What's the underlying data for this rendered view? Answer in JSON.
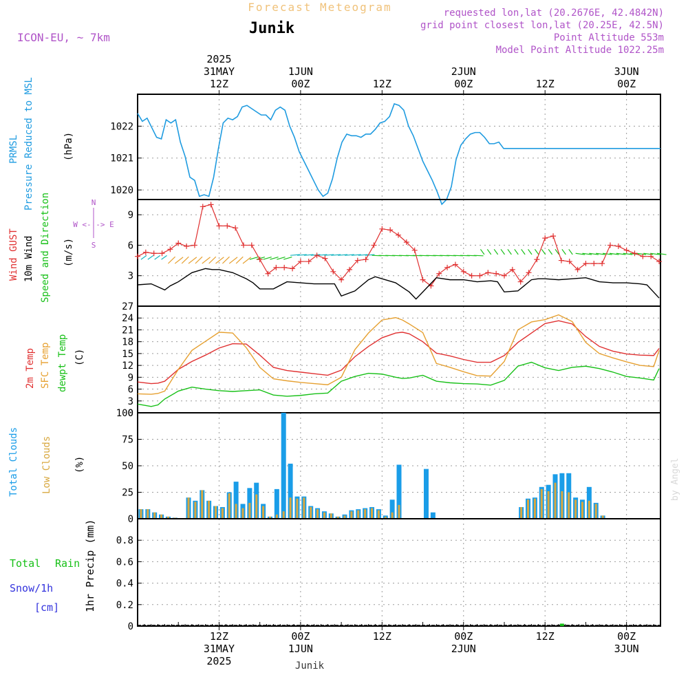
{
  "header": {
    "title": "Forecast Meteogram",
    "location": "Junik",
    "model": "ICON-EU, ~ 7km",
    "requested": "requested lon,lat (20.2676E, 42.4842N)",
    "gridpoint": "grid point closest lon,lat (20.25E, 42.5N)",
    "point_altitude": "Point Altitude 553m",
    "model_altitude": "Model Point Altitude 1022.25m",
    "footer": "Junik",
    "credit": "by Angel"
  },
  "colors": {
    "pressure": "#1e9be0",
    "gust": "#e03030",
    "wind": "#000000",
    "arrows": "#17c017",
    "t2m": "#e03030",
    "sfc": "#e6a030",
    "dewpt": "#17c017",
    "total_clouds": "#1a9de8",
    "low_clouds": "#d8a840",
    "rain": "#17c017",
    "snow": "#3333dd",
    "labels_purple": "#b054c8",
    "title": "#f0c27a"
  },
  "time_axis": {
    "top": [
      {
        "h": 12,
        "lines": [
          "2025",
          "31MAY",
          "12Z"
        ]
      },
      {
        "h": 24,
        "lines": [
          "1JUN",
          "00Z"
        ]
      },
      {
        "h": 36,
        "lines": [
          "12Z"
        ]
      },
      {
        "h": 48,
        "lines": [
          "2JUN",
          "00Z"
        ]
      },
      {
        "h": 60,
        "lines": [
          "12Z"
        ]
      },
      {
        "h": 72,
        "lines": [
          "3JUN",
          "00Z"
        ]
      }
    ],
    "bottom": [
      {
        "h": 12,
        "lines": [
          "12Z",
          "31MAY",
          "2025"
        ]
      },
      {
        "h": 24,
        "lines": [
          "00Z",
          "1JUN"
        ]
      },
      {
        "h": 36,
        "lines": [
          "12Z"
        ]
      },
      {
        "h": 48,
        "lines": [
          "00Z",
          "2JUN"
        ]
      },
      {
        "h": 60,
        "lines": [
          "12Z"
        ]
      },
      {
        "h": 72,
        "lines": [
          "00Z",
          "3JUN"
        ]
      }
    ]
  },
  "chart_data": [
    {
      "type": "line",
      "panel": "pressure",
      "ylabel": "(hPa)",
      "side_labels": [
        "PRMSL",
        "Pressure Reduced to MSL"
      ],
      "ylim": [
        1019.7,
        1023.0
      ],
      "yticks": [
        1020,
        1021,
        1022
      ],
      "grid": true,
      "x_hours": [
        0,
        0.7,
        1.4,
        2.1,
        2.8,
        3.5,
        4.2,
        4.9,
        5.6,
        6.3,
        7.0,
        7.7,
        8.4,
        9.1,
        9.8,
        10.5,
        11.2,
        11.9,
        12.6,
        13.3,
        14.0,
        14.7,
        15.4,
        16.1,
        16.8,
        17.5,
        18.2,
        18.9,
        19.6,
        20.3,
        21.0,
        21.7,
        22.4,
        23.1,
        23.8,
        24.5,
        25.2,
        25.9,
        26.6,
        27.3,
        28.0,
        28.7,
        29.4,
        30.1,
        30.8,
        31.5,
        32.2,
        32.9,
        33.6,
        34.3,
        35.0,
        35.7,
        36.4,
        37.1,
        37.8,
        38.5,
        39.2,
        39.9,
        40.6,
        41.3,
        42.0,
        42.7,
        43.4,
        44.1,
        44.8,
        45.5,
        46.2,
        46.9,
        47.6,
        48.3,
        49.0,
        49.7,
        50.4,
        51.1,
        51.8,
        52.5,
        53.2,
        53.9,
        54.6,
        55.3,
        56.0,
        56.7,
        57.4,
        58.1,
        58.8,
        59.5,
        60.2,
        60.9,
        61.6,
        62.3,
        63.0,
        63.7,
        64.4,
        65.1,
        65.8,
        66.5,
        67.2,
        67.9,
        68.6,
        69.3,
        70.0,
        70.7,
        71.4,
        72.1,
        72.8,
        73.5,
        74.2,
        74.9,
        75.6,
        76.3,
        77.0
      ],
      "values": [
        1022.4,
        1022.15,
        1022.25,
        1021.95,
        1021.65,
        1021.6,
        1022.2,
        1022.1,
        1022.2,
        1021.5,
        1021.05,
        1020.4,
        1020.3,
        1019.8,
        1019.85,
        1019.8,
        1020.4,
        1021.3,
        1022.1,
        1022.25,
        1022.2,
        1022.3,
        1022.6,
        1022.65,
        1022.55,
        1022.45,
        1022.35,
        1022.35,
        1022.2,
        1022.5,
        1022.6,
        1022.5,
        1022.0,
        1021.65,
        1021.2,
        1020.9,
        1020.6,
        1020.3,
        1020.0,
        1019.8,
        1019.9,
        1020.35,
        1021.0,
        1021.5,
        1021.75,
        1021.7,
        1021.7,
        1021.65,
        1021.75,
        1021.75,
        1021.9,
        1022.1,
        1022.15,
        1022.3,
        1022.7,
        1022.65,
        1022.5,
        1022.0,
        1021.7,
        1021.3,
        1020.9,
        1020.6,
        1020.3,
        1019.95,
        1019.55,
        1019.7,
        1020.1,
        1020.95,
        1021.4,
        1021.6,
        1021.75,
        1021.8,
        1021.8,
        1021.65,
        1021.45,
        1021.45,
        1021.5,
        1021.3,
        1021.3,
        1021.3,
        1021.3,
        1021.3,
        1021.3,
        1021.3,
        1021.3,
        1021.3,
        1021.3,
        1021.3,
        1021.3,
        1021.3,
        1021.3,
        1021.3,
        1021.3,
        1021.3,
        1021.3,
        1021.3,
        1021.3,
        1021.3,
        1021.3,
        1021.3,
        1021.3,
        1021.3,
        1021.3,
        1021.3,
        1021.3,
        1021.3,
        1021.3,
        1021.3,
        1021.3,
        1021.3,
        1021.3
      ]
    },
    {
      "type": "line",
      "panel": "wind",
      "ylabel": "(m/s)",
      "side_labels": [
        "Wind GUST",
        "10m Wind",
        "Speed and Direction"
      ],
      "compass": {
        "n": "N",
        "s": "S",
        "w": "W",
        "e": "E",
        "row": "W <-|-> E"
      },
      "ylim": [
        0,
        10.5
      ],
      "yticks": [
        3,
        6,
        9
      ],
      "grid": true,
      "series": [
        {
          "name": "Wind GUST",
          "x": [
            0,
            1.2,
            2.4,
            3.6,
            4.8,
            6.0,
            7.2,
            8.4,
            9.6,
            10.8,
            12.0,
            13.2,
            14.4,
            15.6,
            16.8,
            18.0,
            19.2,
            20.4,
            21.6,
            22.8,
            24.0,
            25.2,
            26.4,
            27.6,
            28.8,
            30.0,
            31.2,
            32.4,
            33.6,
            34.8,
            36.0,
            37.2,
            38.4,
            39.6,
            40.8,
            42.0,
            43.2,
            44.4,
            45.6,
            46.8,
            48.0,
            49.2,
            50.4,
            51.6,
            52.8,
            54.0,
            55.2,
            56.4,
            57.6,
            58.8,
            60.0,
            61.2,
            62.4,
            63.6,
            64.8,
            66.0,
            67.2,
            68.4,
            69.6,
            70.8,
            72.0,
            73.2,
            74.4,
            75.6,
            76.8
          ],
          "values": [
            4.9,
            5.3,
            5.2,
            5.2,
            5.6,
            6.2,
            5.9,
            6.0,
            9.8,
            10.0,
            7.9,
            7.9,
            7.7,
            6.0,
            6.0,
            4.6,
            3.2,
            3.8,
            3.8,
            3.7,
            4.4,
            4.4,
            5.0,
            4.7,
            3.4,
            2.6,
            3.6,
            4.5,
            4.6,
            6.0,
            7.6,
            7.5,
            7.0,
            6.3,
            5.5,
            2.6,
            2.0,
            3.2,
            3.8,
            4.1,
            3.4,
            3.0,
            3.0,
            3.3,
            3.2,
            3.0,
            3.6,
            2.4,
            3.3,
            4.6,
            6.7,
            6.9,
            4.5,
            4.4,
            3.6,
            4.2,
            4.2,
            4.2,
            6.0,
            5.9,
            5.5,
            5.2,
            4.9,
            4.9,
            4.4
          ]
        },
        {
          "name": "10m Wind",
          "x": [
            0,
            2.0,
            4.0,
            4.8,
            6.0,
            8.0,
            10.0,
            11.0,
            12.0,
            14.0,
            16.0,
            17.0,
            18.0,
            20.0,
            22.0,
            24.0,
            26.0,
            28.0,
            29.0,
            30.0,
            32.0,
            34.0,
            35.0,
            36.0,
            38.0,
            40.0,
            41.0,
            42.0,
            44.0,
            46.0,
            48.0,
            50.0,
            52.0,
            53.0,
            54.0,
            56.0,
            58.0,
            59.0,
            60.0,
            62.0,
            64.0,
            66.0,
            68.0,
            70.0,
            72.0,
            74.0,
            75.0,
            76.8
          ],
          "values": [
            2.1,
            2.2,
            1.6,
            2.0,
            2.4,
            3.3,
            3.7,
            3.6,
            3.6,
            3.3,
            2.7,
            2.3,
            1.7,
            1.7,
            2.4,
            2.3,
            2.2,
            2.2,
            2.2,
            1.0,
            1.5,
            2.6,
            2.9,
            2.7,
            2.3,
            1.4,
            0.7,
            1.4,
            2.8,
            2.6,
            2.6,
            2.4,
            2.5,
            2.4,
            1.4,
            1.5,
            2.6,
            2.7,
            2.7,
            2.6,
            2.7,
            2.8,
            2.4,
            2.3,
            2.3,
            2.2,
            2.1,
            0.8
          ]
        }
      ]
    },
    {
      "type": "line",
      "panel": "temperature",
      "ylabel": "(C)",
      "side_labels": [
        "2m Temp",
        "SFC Temp",
        "dewpt Temp"
      ],
      "ylim": [
        0,
        27
      ],
      "yticks": [
        0,
        3,
        6,
        9,
        12,
        15,
        18,
        21,
        24,
        27
      ],
      "grid": true,
      "x": [
        0,
        2,
        3,
        4,
        6,
        8,
        10,
        12,
        14,
        16,
        18,
        20,
        22,
        24,
        26,
        28,
        30,
        32,
        34,
        36,
        38,
        39,
        40,
        42,
        44,
        46,
        48,
        50,
        52,
        54,
        56,
        58,
        60,
        62,
        64,
        66,
        68,
        70,
        72,
        74,
        76,
        76.8
      ],
      "series": [
        {
          "name": "2m Temp",
          "values": [
            7.8,
            7.4,
            7.5,
            8.0,
            11.0,
            13.0,
            14.6,
            16.4,
            17.5,
            17.4,
            14.6,
            11.5,
            10.7,
            10.3,
            9.9,
            9.5,
            10.8,
            14.2,
            16.8,
            19.0,
            20.2,
            20.4,
            20.0,
            18.0,
            15.1,
            14.4,
            13.5,
            12.8,
            12.8,
            14.5,
            17.8,
            20.2,
            22.6,
            23.3,
            22.5,
            19.3,
            16.8,
            15.6,
            14.9,
            14.6,
            14.5,
            16.3
          ]
        },
        {
          "name": "SFC Temp",
          "values": [
            4.8,
            4.7,
            4.9,
            5.5,
            11.0,
            15.8,
            18.1,
            20.4,
            20.2,
            16.5,
            11.5,
            8.6,
            8.1,
            7.7,
            7.4,
            7.1,
            9.0,
            16.0,
            20.2,
            23.5,
            24.1,
            23.5,
            22.5,
            20.3,
            12.5,
            11.5,
            10.4,
            9.4,
            9.3,
            13.0,
            21.0,
            23.0,
            23.6,
            24.8,
            23.1,
            17.8,
            15.0,
            13.9,
            12.9,
            12.0,
            11.7,
            15.8
          ]
        },
        {
          "name": "dewpt Temp",
          "values": [
            2.2,
            1.6,
            2.0,
            3.5,
            5.5,
            6.5,
            6.0,
            5.6,
            5.4,
            5.6,
            5.8,
            4.5,
            4.2,
            4.4,
            4.8,
            5.0,
            8.0,
            9.2,
            10.0,
            9.8,
            9.0,
            8.7,
            8.8,
            9.5,
            8.0,
            7.6,
            7.4,
            7.3,
            7.0,
            8.2,
            11.8,
            12.8,
            11.4,
            10.7,
            11.5,
            11.8,
            11.2,
            10.3,
            9.2,
            8.8,
            8.3,
            11.2
          ]
        }
      ]
    },
    {
      "type": "bar",
      "panel": "clouds",
      "ylabel": "(%)",
      "side_labels": [
        "Total Clouds",
        "Low Clouds"
      ],
      "ylim": [
        0,
        100
      ],
      "yticks": [
        0,
        25,
        50,
        75,
        100
      ],
      "grid": true,
      "x": [
        0.5,
        1.5,
        2.5,
        3.5,
        4.5,
        5.5,
        6.5,
        7.5,
        8.5,
        9.5,
        10.5,
        11.5,
        12.5,
        13.5,
        14.5,
        15.5,
        16.5,
        17.5,
        18.5,
        19.5,
        20.5,
        21.5,
        22.5,
        23.5,
        24.5,
        25.5,
        26.5,
        27.5,
        28.5,
        29.5,
        30.5,
        31.5,
        32.5,
        33.5,
        34.5,
        35.5,
        36.5,
        37.5,
        38.5,
        39.5,
        40.5,
        41.5,
        42.5,
        43.5,
        44.5,
        45.5,
        46.5,
        47.5,
        48.5,
        49.5,
        50.5,
        51.5,
        52.5,
        53.5,
        54.5,
        55.5,
        56.5,
        57.5,
        58.5,
        59.5,
        60.5,
        61.5,
        62.5,
        63.5,
        64.5,
        65.5,
        66.5,
        67.5,
        68.5,
        69.5,
        70.5,
        71.5,
        72.5,
        73.5,
        74.5,
        75.5,
        76.5
      ],
      "series": [
        {
          "name": "Total Clouds",
          "values": [
            9,
            9,
            6,
            4,
            2,
            1,
            0,
            20,
            17,
            27,
            17,
            12,
            11,
            25,
            35,
            14,
            29,
            34,
            14,
            2,
            28,
            100,
            52,
            21,
            21,
            12,
            10,
            7,
            5,
            2,
            4,
            8,
            9,
            10,
            11,
            9,
            3,
            18,
            51,
            0,
            0,
            0,
            47,
            6,
            0,
            0,
            0,
            0,
            0,
            0,
            0,
            0,
            0,
            0,
            0,
            0,
            11,
            19,
            20,
            30,
            32,
            42,
            43,
            43,
            20,
            18,
            30,
            15,
            3,
            0,
            0,
            0,
            0,
            0,
            0,
            0,
            0
          ]
        },
        {
          "name": "Low Clouds",
          "values": [
            9,
            9,
            6,
            4,
            2,
            1,
            0,
            20,
            16,
            27,
            17,
            12,
            10,
            24,
            14,
            10,
            15,
            23,
            12,
            2,
            4,
            7,
            20,
            19,
            20,
            11,
            9,
            6,
            5,
            2,
            3,
            7,
            8,
            9,
            10,
            8,
            2,
            6,
            13,
            0,
            0,
            0,
            0,
            0,
            0,
            0,
            0,
            0,
            0,
            0,
            0,
            0,
            0,
            0,
            0,
            0,
            11,
            18,
            19,
            28,
            26,
            34,
            26,
            25,
            18,
            16,
            17,
            14,
            3,
            0,
            0,
            0,
            0,
            0,
            0,
            0,
            0
          ]
        }
      ]
    },
    {
      "type": "bar",
      "panel": "precip",
      "ylabel": "1hr Precip (mm)",
      "side_labels": [
        "Total",
        "Rain",
        "Snow/1h",
        "[cm]"
      ],
      "ylim": [
        0,
        1.0
      ],
      "yticks": [
        0,
        0.2,
        0.4,
        0.6,
        0.8
      ],
      "grid": true,
      "x": [
        62.5
      ],
      "values": [
        0.01
      ]
    }
  ]
}
